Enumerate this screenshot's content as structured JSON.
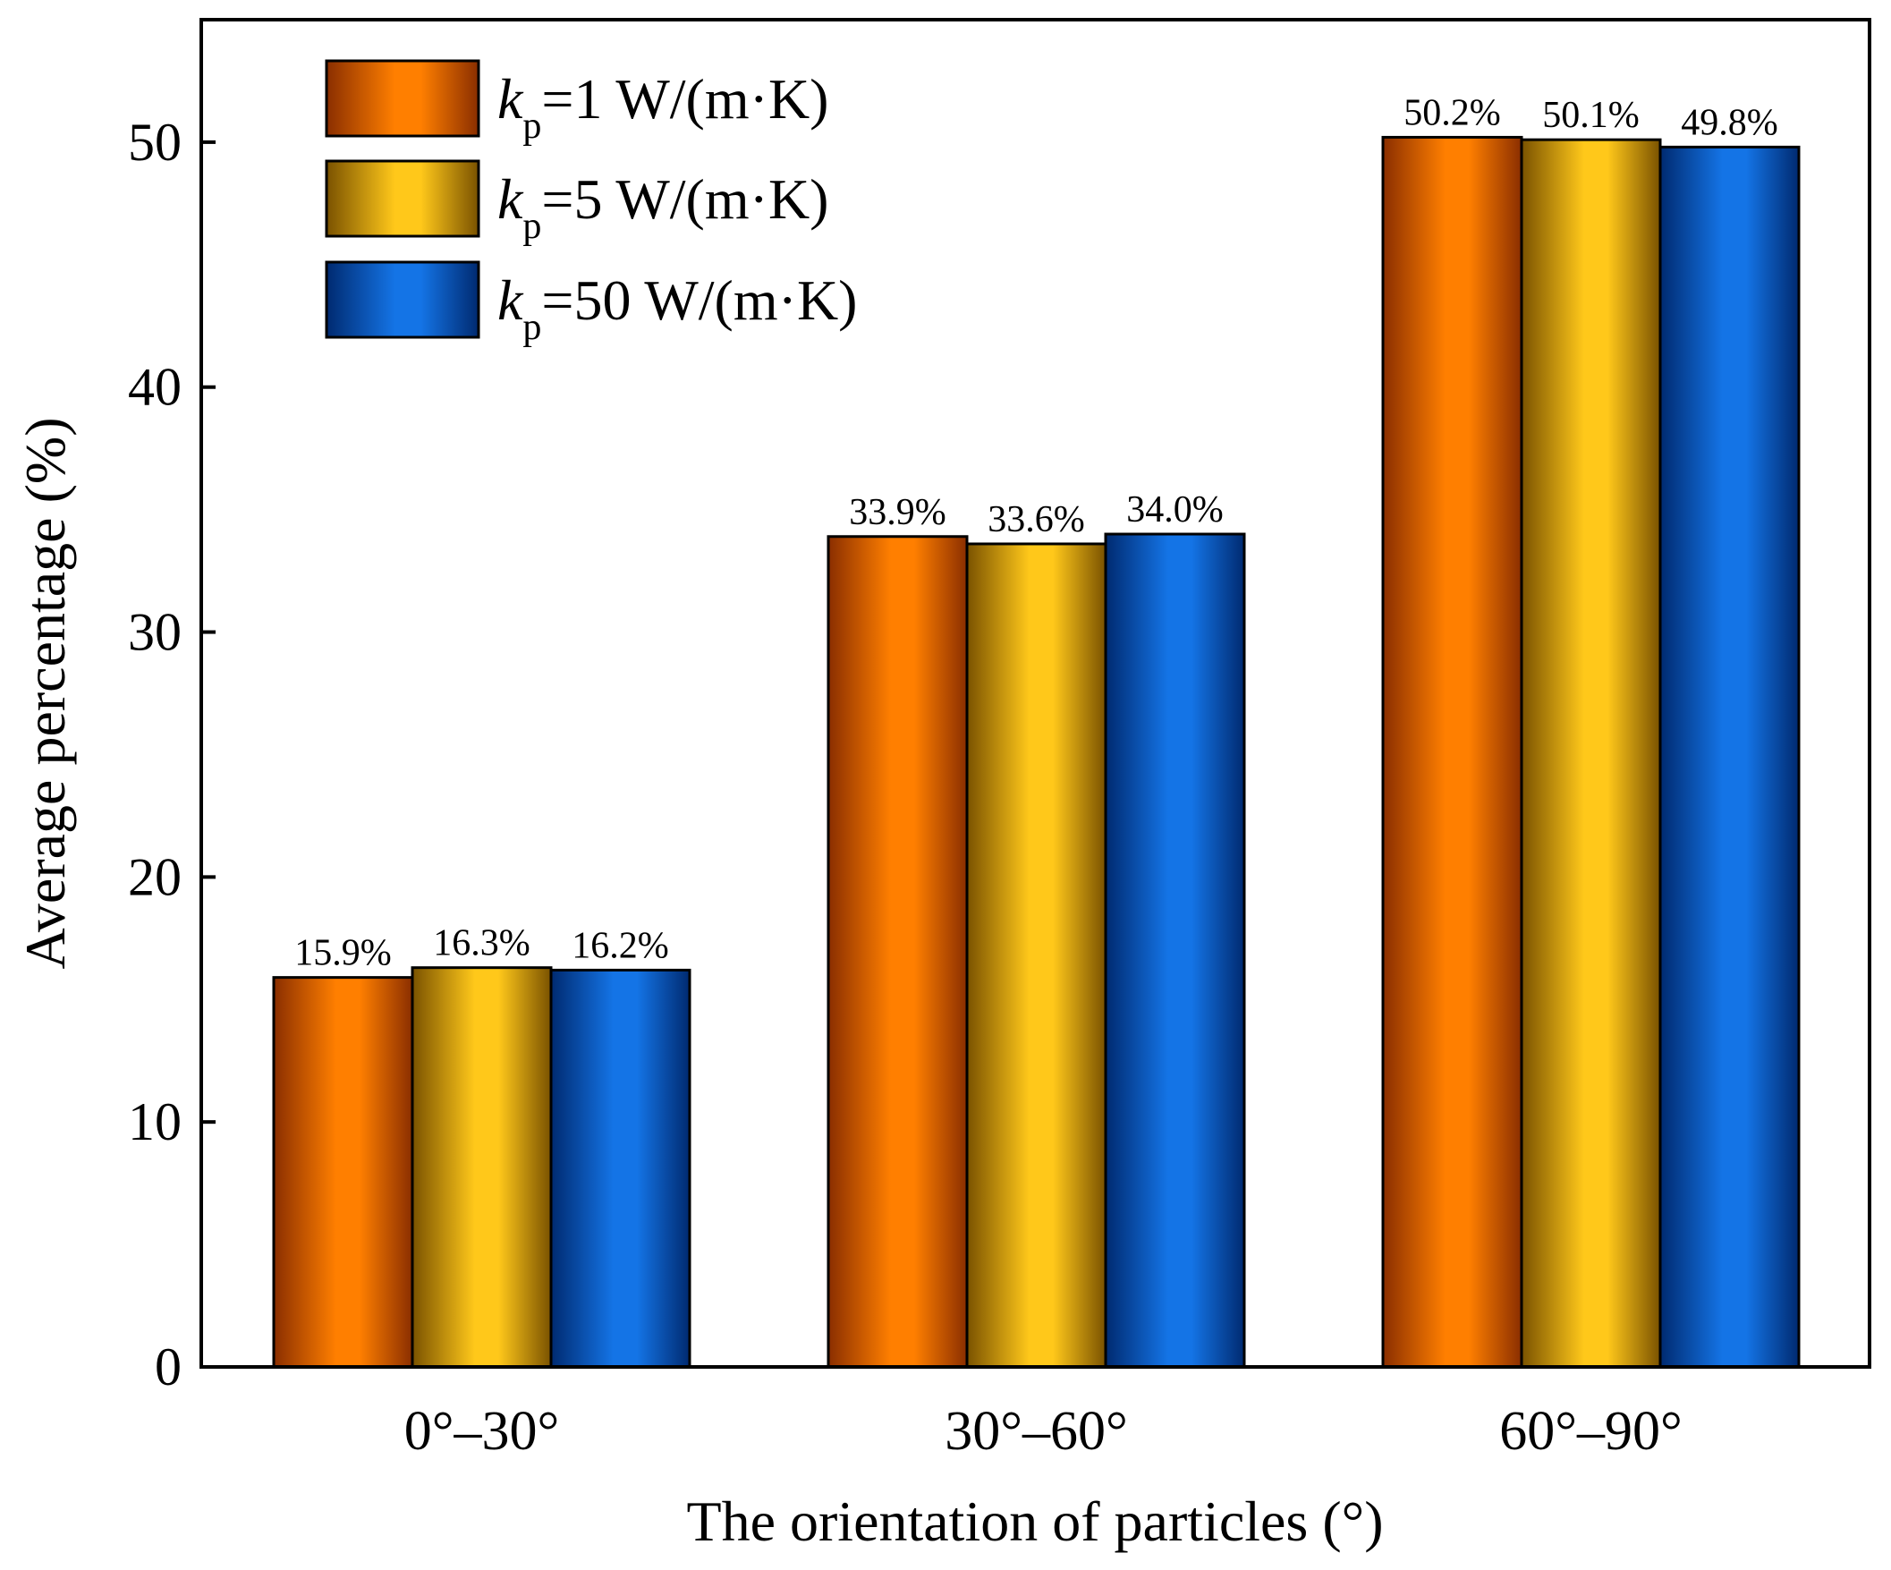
{
  "chart_data": {
    "type": "bar",
    "title": "",
    "xlabel": "The orientation of particles (°)",
    "ylabel": "Average percentage (%)",
    "ylim": [
      0,
      55
    ],
    "yticks": [
      0,
      10,
      20,
      30,
      40,
      50
    ],
    "categories": [
      "0°–30°",
      "30°–60°",
      "60°–90°"
    ],
    "legend_position": "top-left",
    "series": [
      {
        "name": "kp=1 W/(m·K)",
        "legend_symbol": "k",
        "legend_subscript": "p",
        "legend_suffix": "=1 W/(m·K)",
        "color_edge": "#8a2e00",
        "color_mid": "#ff7f00",
        "values": [
          15.9,
          33.9,
          50.2
        ],
        "labels": [
          "15.9%",
          "33.9%",
          "50.2%"
        ]
      },
      {
        "name": "kp=5 W/(m·K)",
        "legend_symbol": "k",
        "legend_subscript": "p",
        "legend_suffix": "=5 W/(m·K)",
        "color_edge": "#7a5200",
        "color_mid": "#ffc81a",
        "values": [
          16.3,
          33.6,
          50.1
        ],
        "labels": [
          "16.3%",
          "33.6%",
          "50.1%"
        ]
      },
      {
        "name": "kp=50 W/(m·K)",
        "legend_symbol": "k",
        "legend_subscript": "p",
        "legend_suffix": "=50 W/(m·K)",
        "color_edge": "#002a70",
        "color_mid": "#1474e6",
        "values": [
          16.2,
          34.0,
          49.8
        ],
        "labels": [
          "16.2%",
          "34.0%",
          "49.8%"
        ]
      }
    ]
  }
}
